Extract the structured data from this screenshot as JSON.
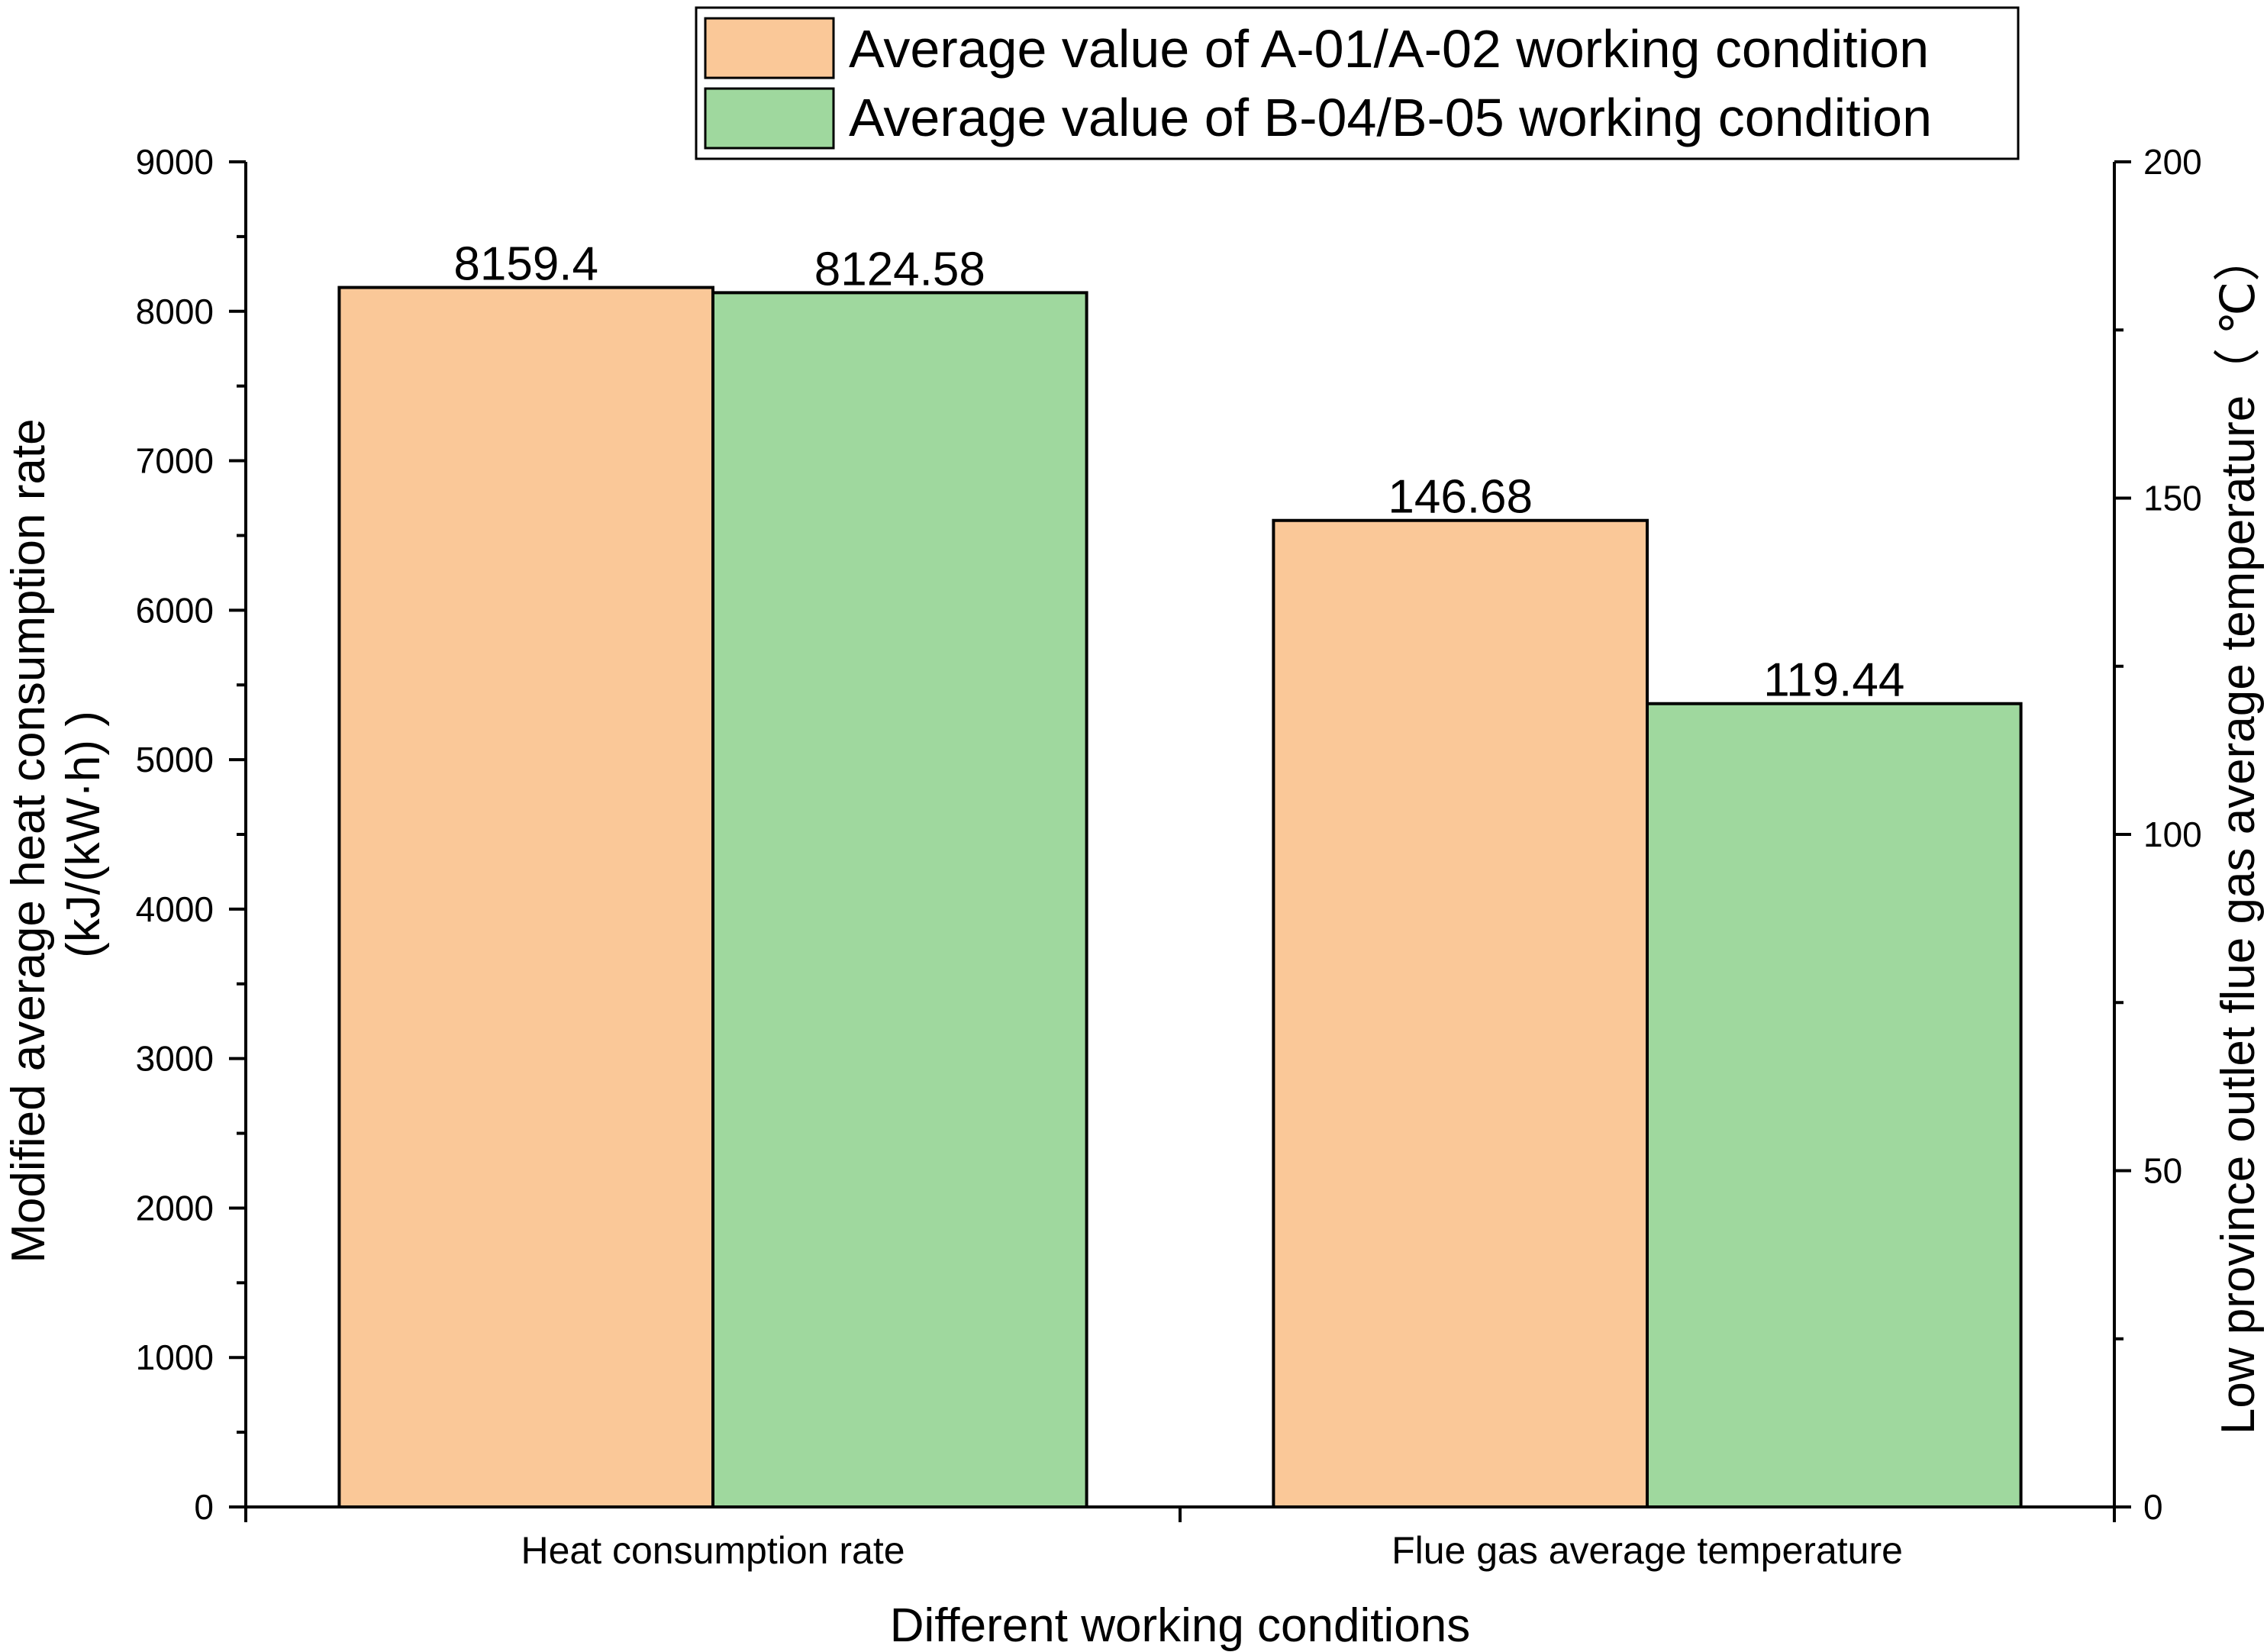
{
  "chart_data": {
    "type": "bar",
    "title": "",
    "xlabel": "Different working conditions",
    "ylabel_left": [
      "Modified average heat consumption rate",
      "(kJ/(kW·h) )"
    ],
    "ylabel_right": "Low province outlet flue gas average temperature（ ℃）",
    "categories": [
      "Heat consumption rate",
      "Flue gas average temperature"
    ],
    "category_axis": [
      "left",
      "right"
    ],
    "series": [
      {
        "name": "Average value of A-01/A-02 working condition",
        "color": "#fac898",
        "values": [
          8159.4,
          146.68
        ],
        "labels": [
          "8159.4",
          "146.68"
        ]
      },
      {
        "name": "Average value of B-04/B-05 working condition",
        "color": "#9fd89e",
        "values": [
          8124.58,
          119.44
        ],
        "labels": [
          "8124.58",
          "119.44"
        ]
      }
    ],
    "ylim_left": [
      0,
      9000
    ],
    "yticks_left": [
      "0",
      "1000",
      "2000",
      "3000",
      "4000",
      "5000",
      "6000",
      "7000",
      "8000",
      "9000"
    ],
    "ylim_right": [
      0,
      200
    ],
    "yticks_right": [
      "0",
      "50",
      "100",
      "150",
      "200"
    ],
    "grid": false,
    "legend_position": "top-right"
  }
}
